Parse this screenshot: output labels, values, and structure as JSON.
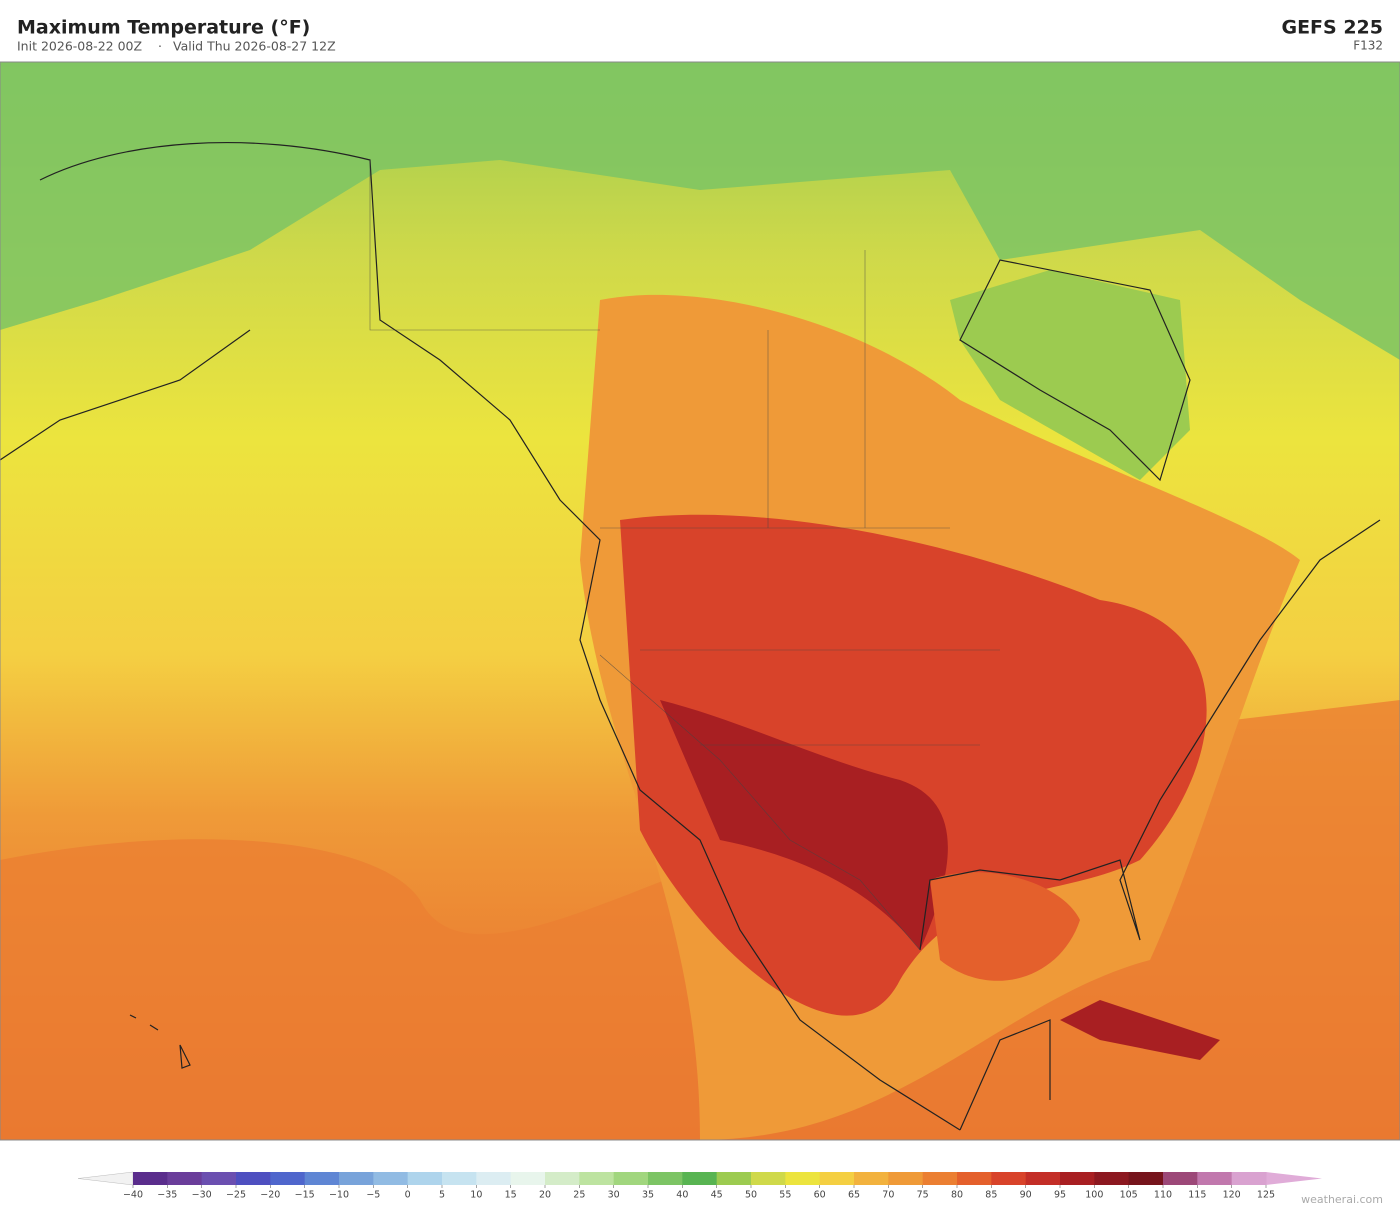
{
  "header": {
    "title": "Maximum Temperature  (°F)",
    "subtitle_init": "Init 2026-08-22 00Z",
    "subtitle_sep": "·",
    "subtitle_valid": "Valid Thu 2026-08-27 12Z",
    "model": "GEFS  225",
    "forecast_hour": "F132"
  },
  "colorbar": {
    "ticks": [
      {
        "value": -40,
        "label": "−40"
      },
      {
        "value": -35,
        "label": "−35"
      },
      {
        "value": -30,
        "label": "−30"
      },
      {
        "value": -25,
        "label": "−25"
      },
      {
        "value": -20,
        "label": "−20"
      },
      {
        "value": -15,
        "label": "−15"
      },
      {
        "value": -10,
        "label": "−10"
      },
      {
        "value": -5,
        "label": "−5"
      },
      0,
      5,
      10,
      15,
      20,
      25,
      30,
      35,
      40,
      45,
      50,
      55,
      60,
      65,
      70,
      75,
      80,
      85,
      90,
      95,
      100,
      105,
      110,
      115,
      120,
      125
    ],
    "colors": [
      "#5a2d8c",
      "#6a3d9a",
      "#6b4fb0",
      "#4e4fc0",
      "#4f66cc",
      "#5f86d4",
      "#78a3da",
      "#91bbe3",
      "#aed4ec",
      "#c6e3f0",
      "#dcedf2",
      "#e8f5ec",
      "#d4ecc8",
      "#bde3a0",
      "#a1d67e",
      "#7cc464",
      "#58b452",
      "#9ccb50",
      "#cfd94a",
      "#ece43e",
      "#f4cf42",
      "#f2b23e",
      "#ef9a38",
      "#eb7f32",
      "#e4602c",
      "#d8432a",
      "#c32e27",
      "#a81f22",
      "#8c1820",
      "#76141c",
      "#9c4878",
      "#c178ad",
      "#d9a2d0"
    ],
    "under_color": "#f2f2f2",
    "over_color": "#e0acd8"
  },
  "footer": {
    "watermark": "weatherai.com"
  }
}
